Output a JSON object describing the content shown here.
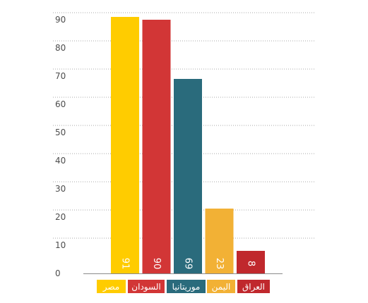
{
  "chart_data": {
    "type": "bar",
    "categories": [
      "مصر",
      "السودان",
      "موريتانيا",
      "اليمن",
      "العراق"
    ],
    "values": [
      91,
      90,
      69,
      23,
      8
    ],
    "colors": [
      "#ffcc00",
      "#d23636",
      "#2a6b7c",
      "#f2b135",
      "#c0282d"
    ],
    "ylim": [
      0,
      90
    ],
    "yticks": [
      "0",
      "10",
      "20",
      "30",
      "40",
      "50",
      "60",
      "70",
      "80",
      "90"
    ],
    "grid": true,
    "grid_style": "dotted",
    "data_labels": [
      "91",
      "90",
      "69",
      "23",
      "8"
    ],
    "legend_position": "bottom",
    "legend": [
      "مصر",
      "السودان",
      "موريتانيا",
      "اليمن",
      "العراق"
    ],
    "xlabel": "",
    "ylabel": "",
    "title": ""
  }
}
